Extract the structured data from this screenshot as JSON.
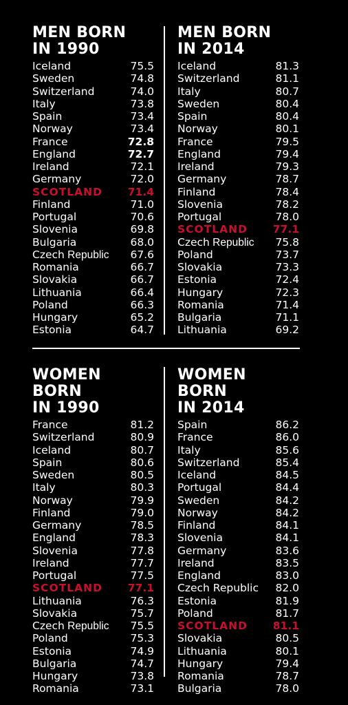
{
  "colors": {
    "background": "#000000",
    "text": "#ffffff",
    "highlight": "#c8102e"
  },
  "chart_data": [
    {
      "type": "table",
      "title": "MEN BORN\nIN 1990",
      "rows": [
        {
          "country": "Iceland",
          "value": "75.5"
        },
        {
          "country": "Sweden",
          "value": "74.8"
        },
        {
          "country": "Switzerland",
          "value": "74.0"
        },
        {
          "country": "Italy",
          "value": "73.8"
        },
        {
          "country": "Spain",
          "value": "73.4"
        },
        {
          "country": "Norway",
          "value": "73.4"
        },
        {
          "country": "France",
          "value": "72.8",
          "bold": true
        },
        {
          "country": "England",
          "value": "72.7",
          "bold": true
        },
        {
          "country": "Ireland",
          "value": "72.1"
        },
        {
          "country": "Germany",
          "value": "72.0"
        },
        {
          "country": "SCOTLAND",
          "value": "71.4",
          "highlight": true
        },
        {
          "country": "Finland",
          "value": "71.0"
        },
        {
          "country": "Portugal",
          "value": "70.6"
        },
        {
          "country": "Slovenia",
          "value": "69.8"
        },
        {
          "country": "Bulgaria",
          "value": "68.0"
        },
        {
          "country": "Czech",
          "country_rest": " Republic",
          "value": "67.6"
        },
        {
          "country": "Romania",
          "value": "66.7"
        },
        {
          "country": "Slovakia",
          "value": "66.7"
        },
        {
          "country": "Lithuania",
          "value": "66.4"
        },
        {
          "country": "Poland",
          "value": "66.3"
        },
        {
          "country": "Hungary",
          "value": "65.2"
        },
        {
          "country": "Estonia",
          "value": "64.7"
        }
      ]
    },
    {
      "type": "table",
      "title": "MEN BORN\nIN 2014",
      "rows": [
        {
          "country": "Iceland",
          "value": "81.3"
        },
        {
          "country": "Switzerland",
          "value": "81.1"
        },
        {
          "country": "Italy",
          "value": "80.7"
        },
        {
          "country": "Sweden",
          "value": "80.4"
        },
        {
          "country": "Spain",
          "value": "80.4"
        },
        {
          "country": "Norway",
          "value": "80.1"
        },
        {
          "country": "France",
          "value": "79.5"
        },
        {
          "country": "England",
          "value": "79.4"
        },
        {
          "country": "Ireland",
          "value": "79.3"
        },
        {
          "country": "Germany",
          "value": "78.7"
        },
        {
          "country": "Finland",
          "value": "78.4"
        },
        {
          "country": "Slovenia",
          "value": "78.2"
        },
        {
          "country": "Portugal",
          "value": "78.0"
        },
        {
          "country": "SCOTLAND",
          "value": "77.1",
          "highlight": true
        },
        {
          "country": "Czech",
          "country_rest": " Republic",
          "value": "75.8"
        },
        {
          "country": "Poland",
          "value": "73.7"
        },
        {
          "country": "Slovakia",
          "value": "73.3"
        },
        {
          "country": "Estonia",
          "value": "72.4"
        },
        {
          "country": "Hungary",
          "value": "72.3"
        },
        {
          "country": "Romania",
          "value": "71.4"
        },
        {
          "country": "Bulgaria",
          "value": "71.1"
        },
        {
          "country": "Lithuania",
          "value": "69.2"
        }
      ]
    },
    {
      "type": "table",
      "title": "WOMEN BORN\nIN 1990",
      "rows": [
        {
          "country": "France",
          "value": "81.2"
        },
        {
          "country": "Switzerland",
          "value": "80.9"
        },
        {
          "country": "Iceland",
          "value": "80.7"
        },
        {
          "country": "Spain",
          "value": "80.6"
        },
        {
          "country": "Sweden",
          "value": "80.5"
        },
        {
          "country": "Italy",
          "value": "80.3"
        },
        {
          "country": "Norway",
          "value": "79.9"
        },
        {
          "country": "Finland",
          "value": "79.0"
        },
        {
          "country": "Germany",
          "value": "78.5"
        },
        {
          "country": "England",
          "value": "78.3"
        },
        {
          "country": "Slovenia",
          "value": "77.8"
        },
        {
          "country": "Ireland",
          "value": "77.7"
        },
        {
          "country": "Portugal",
          "value": "77.5"
        },
        {
          "country": "SCOTLAND",
          "value": "77.1",
          "highlight": true
        },
        {
          "country": "Lithuania",
          "value": "76.3"
        },
        {
          "country": "Slovakia",
          "value": "75.7"
        },
        {
          "country": "Czech",
          "country_rest": " Republic",
          "value": "75.5"
        },
        {
          "country": "Poland",
          "value": "75.3"
        },
        {
          "country": "Estonia",
          "value": "74.9"
        },
        {
          "country": "Bulgaria",
          "value": "74.7"
        },
        {
          "country": "Hungary",
          "value": "73.8"
        },
        {
          "country": "Romania",
          "value": "73.1"
        }
      ]
    },
    {
      "type": "table",
      "title": "WOMEN BORN\nIN 2014",
      "rows": [
        {
          "country": "Spain",
          "value": "86.2"
        },
        {
          "country": "France",
          "value": "86.0"
        },
        {
          "country": "Italy",
          "value": "85.6"
        },
        {
          "country": "Switzerland",
          "value": "85.4"
        },
        {
          "country": "Iceland",
          "value": "84.5"
        },
        {
          "country": "Portugal",
          "value": "84.4"
        },
        {
          "country": "Sweden",
          "value": "84.2"
        },
        {
          "country": "Norway",
          "value": "84.2"
        },
        {
          "country": "Finland",
          "value": "84.1"
        },
        {
          "country": "Slovenia",
          "value": "84.1"
        },
        {
          "country": "Germany",
          "value": "83.6"
        },
        {
          "country": "Ireland",
          "value": "83.5"
        },
        {
          "country": "England",
          "value": "83.0"
        },
        {
          "country": "Czech Republic",
          "value": "82.0"
        },
        {
          "country": "Estonia",
          "value": "81.9"
        },
        {
          "country": "Poland",
          "value": "81.7"
        },
        {
          "country": "SCOTLAND",
          "value": "81.1",
          "highlight": true
        },
        {
          "country": "Slovakia",
          "value": "80.5"
        },
        {
          "country": "Lithuania",
          "value": "80.1"
        },
        {
          "country": "Hungary",
          "value": "79.4"
        },
        {
          "country": "Romania",
          "value": "78.7"
        },
        {
          "country": "Bulgaria",
          "value": "78.0"
        }
      ]
    }
  ]
}
